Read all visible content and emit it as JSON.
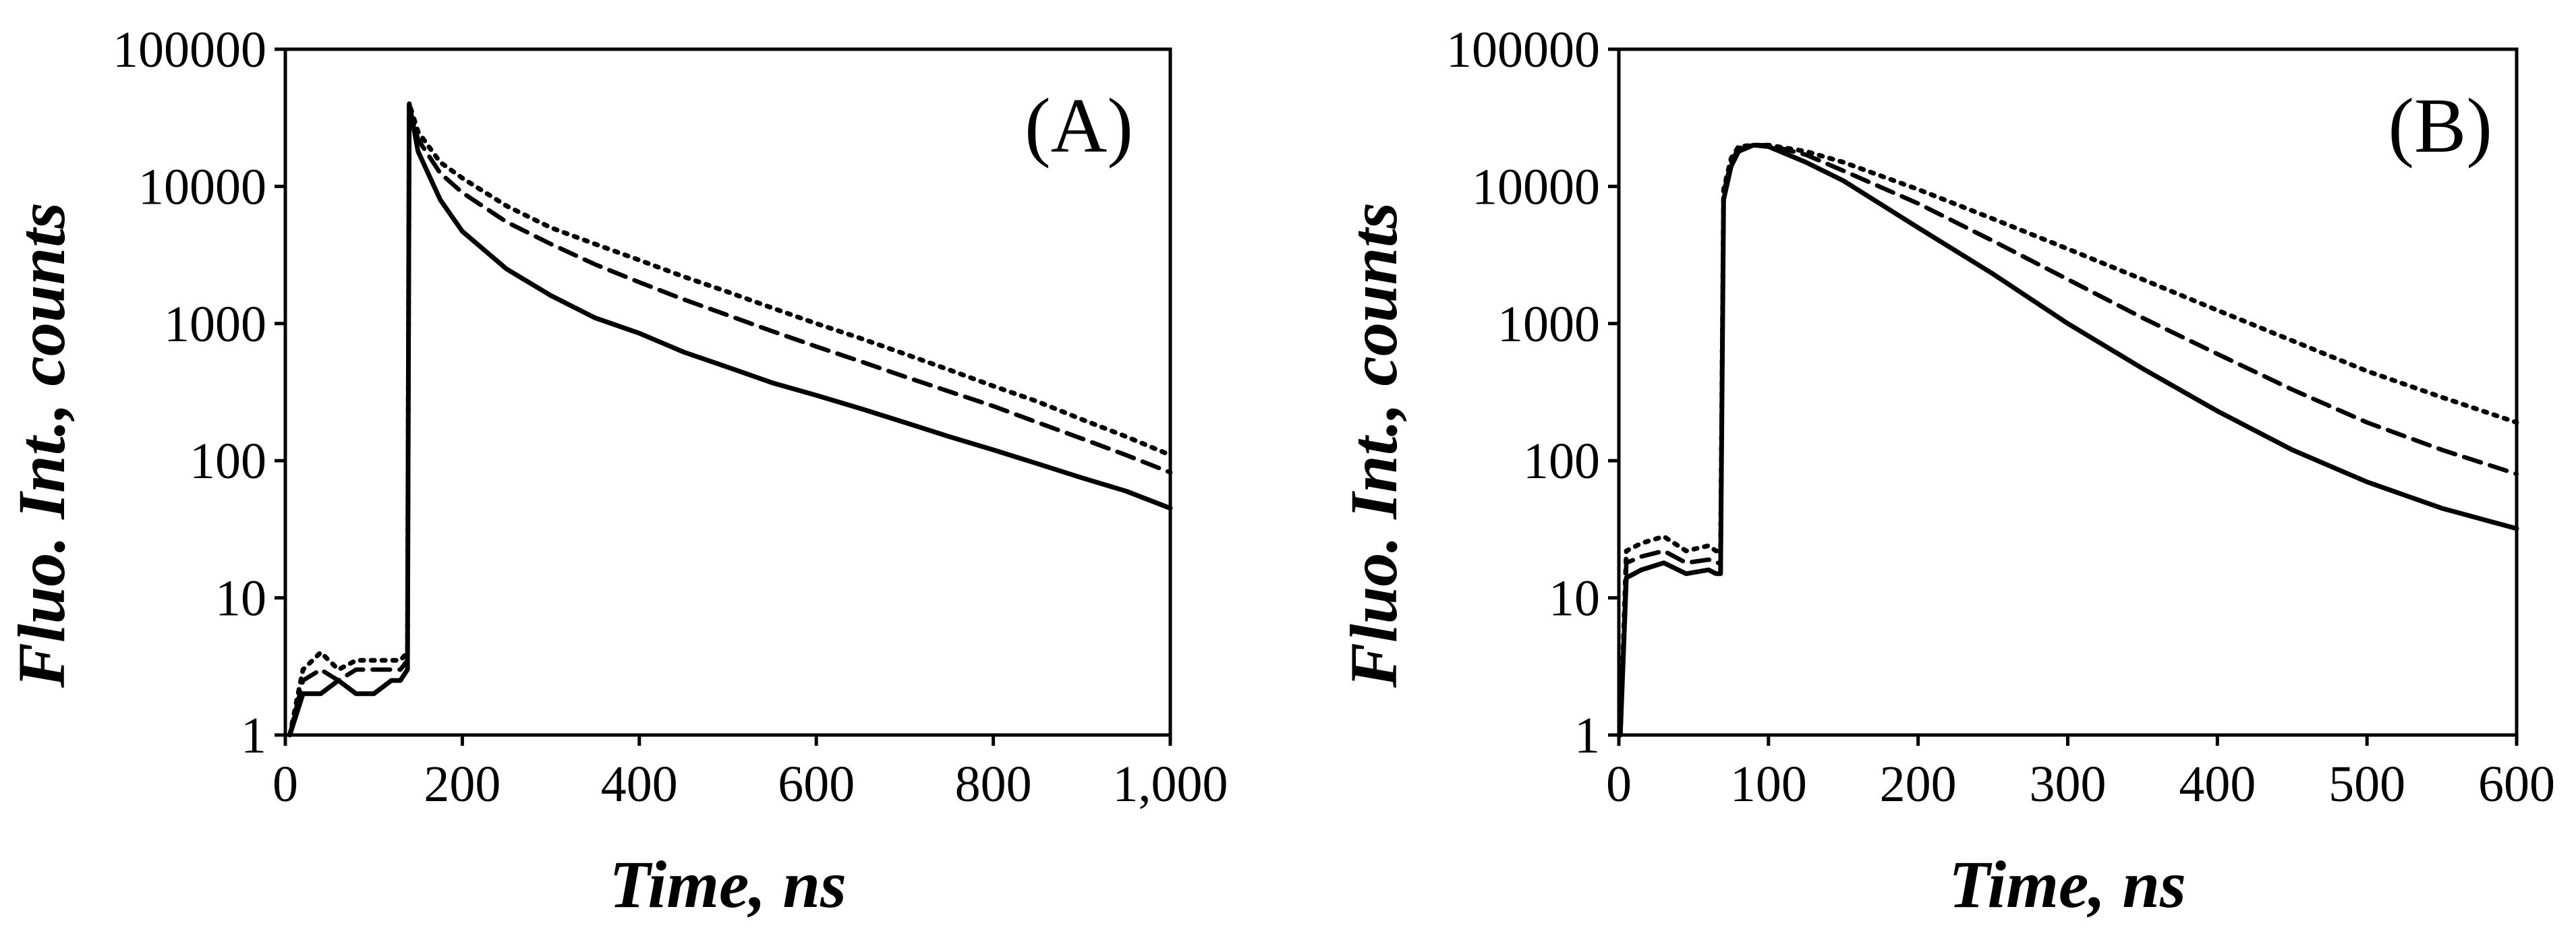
{
  "chart_data": [
    {
      "type": "line",
      "panel_label": "(A)",
      "xlabel": "Time, ns",
      "ylabel": "Fluo. Int., counts",
      "xlim": [
        0,
        1000
      ],
      "ylim": [
        1,
        100000
      ],
      "yscale": "log",
      "x_ticks": [
        0,
        200,
        400,
        600,
        800,
        1000
      ],
      "x_tick_labels": [
        "0",
        "200",
        "400",
        "600",
        "800",
        "1,000"
      ],
      "y_ticks": [
        1,
        10,
        100,
        1000,
        10000,
        100000
      ],
      "y_tick_labels": [
        "1",
        "10",
        "100",
        "1000",
        "10000",
        "100000"
      ],
      "series": [
        {
          "name": "solid",
          "style": "solid",
          "x": [
            5,
            20,
            40,
            60,
            80,
            100,
            120,
            130,
            138,
            140,
            150,
            175,
            200,
            250,
            300,
            350,
            400,
            450,
            500,
            550,
            600,
            650,
            700,
            750,
            800,
            850,
            900,
            950,
            1000
          ],
          "y": [
            1,
            2,
            2,
            2.5,
            2,
            2,
            2.5,
            2.5,
            3,
            40000,
            18000,
            8000,
            4700,
            2500,
            1600,
            1100,
            850,
            620,
            480,
            370,
            300,
            240,
            190,
            150,
            120,
            95,
            75,
            60,
            45
          ]
        },
        {
          "name": "dashed",
          "style": "dashed",
          "x": [
            5,
            20,
            40,
            60,
            80,
            100,
            120,
            130,
            138,
            140,
            150,
            175,
            200,
            250,
            300,
            350,
            400,
            450,
            500,
            550,
            600,
            650,
            700,
            750,
            800,
            850,
            900,
            950,
            1000
          ],
          "y": [
            1,
            2.5,
            3,
            2.5,
            3,
            3,
            3,
            3,
            3.5,
            38000,
            22000,
            12500,
            9000,
            5500,
            3800,
            2700,
            2000,
            1500,
            1150,
            880,
            680,
            530,
            410,
            320,
            250,
            190,
            145,
            110,
            82
          ]
        },
        {
          "name": "dotted",
          "style": "dotted",
          "x": [
            5,
            20,
            40,
            60,
            80,
            100,
            120,
            130,
            138,
            140,
            150,
            175,
            200,
            250,
            300,
            350,
            400,
            450,
            500,
            550,
            600,
            650,
            700,
            750,
            800,
            850,
            900,
            950,
            1000
          ],
          "y": [
            1,
            3,
            4,
            3,
            3.5,
            3.5,
            3.5,
            3.5,
            4,
            40000,
            25000,
            15000,
            11500,
            7200,
            5000,
            3800,
            2900,
            2200,
            1700,
            1300,
            1000,
            780,
            600,
            460,
            350,
            270,
            200,
            150,
            110
          ]
        }
      ]
    },
    {
      "type": "line",
      "panel_label": "(B)",
      "xlabel": "Time, ns",
      "ylabel": "Fluo. Int., counts",
      "xlim": [
        0,
        600
      ],
      "ylim": [
        1,
        100000
      ],
      "yscale": "log",
      "x_ticks": [
        0,
        100,
        200,
        300,
        400,
        500,
        600
      ],
      "x_tick_labels": [
        "0",
        "100",
        "200",
        "300",
        "400",
        "500",
        "600"
      ],
      "y_ticks": [
        1,
        10,
        100,
        1000,
        10000,
        100000
      ],
      "y_tick_labels": [
        "1",
        "10",
        "100",
        "1000",
        "10000",
        "100000"
      ],
      "series": [
        {
          "name": "solid",
          "style": "solid",
          "x": [
            1,
            5,
            15,
            30,
            45,
            60,
            65,
            68,
            70,
            75,
            80,
            90,
            100,
            125,
            150,
            200,
            250,
            300,
            350,
            400,
            450,
            500,
            550,
            600
          ],
          "y": [
            1,
            14,
            16,
            18,
            15,
            16,
            15,
            15,
            8000,
            14000,
            18000,
            20000,
            19500,
            15000,
            11000,
            5000,
            2300,
            1000,
            470,
            230,
            120,
            70,
            45,
            32
          ]
        },
        {
          "name": "dashed",
          "style": "dashed",
          "x": [
            1,
            5,
            15,
            30,
            45,
            60,
            65,
            68,
            70,
            75,
            80,
            90,
            100,
            125,
            150,
            200,
            250,
            300,
            350,
            400,
            450,
            500,
            550,
            600
          ],
          "y": [
            1,
            18,
            20,
            22,
            18,
            19,
            18,
            18,
            9000,
            15000,
            19000,
            20000,
            20000,
            17000,
            13000,
            7500,
            4000,
            2100,
            1100,
            600,
            330,
            190,
            120,
            80
          ]
        },
        {
          "name": "dotted",
          "style": "dotted",
          "x": [
            1,
            5,
            15,
            30,
            45,
            60,
            65,
            68,
            70,
            75,
            80,
            90,
            100,
            125,
            150,
            200,
            250,
            300,
            350,
            400,
            450,
            500,
            550,
            600
          ],
          "y": [
            1,
            22,
            25,
            28,
            22,
            24,
            22,
            22,
            9500,
            16000,
            19500,
            20000,
            20000,
            18000,
            15000,
            9500,
            5800,
            3500,
            2100,
            1250,
            750,
            450,
            290,
            190
          ]
        }
      ]
    }
  ]
}
